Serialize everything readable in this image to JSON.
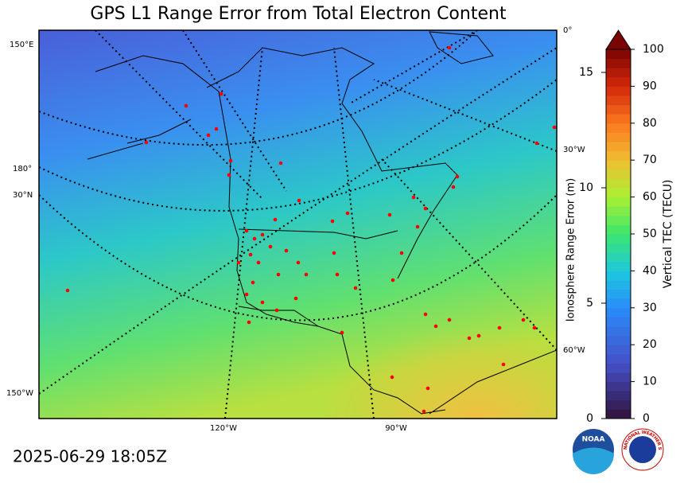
{
  "title": "GPS L1 Range Error from Total Electron Content",
  "timestamp": "2025-06-29 18:05Z",
  "map": {
    "graticule_labels": [
      "150°E",
      "180°",
      "30°N",
      "150°W",
      "0°",
      "30°W",
      "60°W",
      "120°W",
      "90°W"
    ]
  },
  "colorbar": {
    "label": "Vertical TEC (TECU)",
    "lim": [
      0,
      100
    ],
    "ticks": [
      0,
      10,
      20,
      30,
      40,
      50,
      60,
      70,
      80,
      90,
      100
    ]
  },
  "range_axis": {
    "label": "Ionosphere Range Error (m)",
    "lim": [
      0,
      16
    ],
    "ticks": [
      0,
      5,
      10,
      15
    ]
  },
  "logos": {
    "noaa": "NOAA",
    "nws": "NATIONAL WEATHER SERVICE"
  }
}
